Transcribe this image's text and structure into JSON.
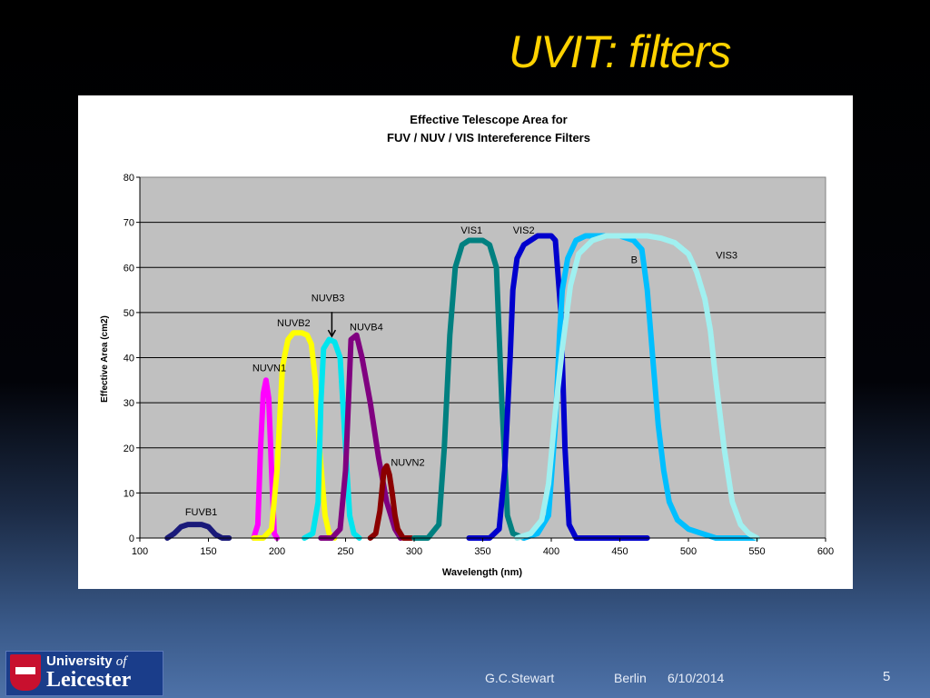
{
  "slide": {
    "title": "UVIT: filters",
    "footer_author": "G.C.Stewart",
    "footer_place": "Berlin",
    "footer_date": "6/10/2014",
    "page_number": "5",
    "logo_line1_prefix": "University",
    "logo_line1_suffix": "of",
    "logo_line2": "Leicester"
  },
  "chart_data": {
    "type": "line",
    "title_line1": "Effective Telescope Area for",
    "title_line2": "FUV / NUV / VIS Intereference Filters",
    "xlabel": "Wavelength (nm)",
    "ylabel": "Effective Area (cm2)",
    "xlim": [
      100,
      600
    ],
    "ylim": [
      0,
      80
    ],
    "xticks": [
      100,
      150,
      200,
      250,
      300,
      350,
      400,
      450,
      500,
      550,
      600
    ],
    "yticks": [
      0,
      10,
      20,
      30,
      40,
      50,
      60,
      70,
      80
    ],
    "grid": true,
    "series": [
      {
        "name": "FUVB1",
        "color": "#1a1a7a",
        "label_at": [
          133,
          5
        ],
        "x": [
          120,
          125,
          130,
          135,
          140,
          145,
          150,
          155,
          160,
          165
        ],
        "y": [
          0,
          1,
          2.5,
          3,
          3,
          3,
          2.5,
          0.8,
          0,
          0
        ]
      },
      {
        "name": "NUVN1",
        "color": "#ff00ff",
        "label_at": [
          182,
          37
        ],
        "x": [
          183,
          186,
          188,
          190,
          192,
          194,
          196,
          198,
          200
        ],
        "y": [
          0,
          3,
          20,
          32,
          35,
          31,
          15,
          1,
          0
        ]
      },
      {
        "name": "NUVB2",
        "color": "#ffff00",
        "label_at": [
          200,
          47
        ],
        "x": [
          183,
          190,
          196,
          200,
          204,
          208,
          212,
          218,
          222,
          225,
          228,
          231,
          235,
          238,
          242
        ],
        "y": [
          0,
          0,
          2,
          15,
          38,
          44,
          45.5,
          45.5,
          45,
          43,
          35,
          20,
          5,
          1,
          0
        ]
      },
      {
        "name": "NUVB3",
        "color": "#00e5ee",
        "label_at": [
          225,
          52.5
        ],
        "x": [
          220,
          226,
          230,
          232,
          234,
          238,
          242,
          246,
          250,
          253,
          256,
          260
        ],
        "y": [
          0,
          1,
          8,
          30,
          42,
          44,
          43.5,
          40,
          20,
          5,
          1,
          0
        ]
      },
      {
        "name": "NUVB4",
        "color": "#800080",
        "label_at": [
          253,
          46
        ],
        "x": [
          232,
          240,
          246,
          250,
          254,
          258,
          262,
          268,
          274,
          280,
          286,
          290
        ],
        "y": [
          0,
          0,
          2,
          15,
          44,
          45,
          40,
          30,
          18,
          8,
          2,
          0
        ]
      },
      {
        "name": "NUVN2",
        "color": "#8b0000",
        "label_at": [
          283,
          16
        ],
        "x": [
          268,
          272,
          275,
          278,
          280,
          282,
          284,
          286,
          288,
          292,
          298
        ],
        "y": [
          0,
          1,
          6,
          15,
          16,
          14,
          10,
          5,
          2,
          0,
          0
        ]
      },
      {
        "name": "VIS1",
        "color": "#008080",
        "label_at": [
          334,
          67.5
        ],
        "x": [
          300,
          310,
          318,
          322,
          326,
          330,
          335,
          340,
          345,
          350,
          355,
          360,
          364,
          368,
          372,
          380
        ],
        "y": [
          0,
          0,
          3,
          20,
          45,
          60,
          65,
          66,
          66,
          66,
          65,
          60,
          30,
          5,
          1,
          0
        ]
      },
      {
        "name": "VIS2",
        "color": "#0000cd",
        "label_at": [
          372,
          67.5
        ],
        "x": [
          340,
          355,
          362,
          366,
          370,
          372,
          375,
          380,
          385,
          390,
          395,
          400,
          403,
          407,
          410,
          413,
          418,
          430,
          470
        ],
        "y": [
          0,
          0,
          2,
          15,
          40,
          55,
          62,
          65,
          66,
          67,
          67,
          67,
          66,
          50,
          20,
          3,
          0,
          0,
          0
        ]
      },
      {
        "name": "B",
        "color": "#00bfff",
        "label_at": [
          458,
          61
        ],
        "x": [
          380,
          390,
          398,
          403,
          406,
          408,
          412,
          418,
          425,
          430,
          440,
          450,
          460,
          466,
          470,
          474,
          478,
          482,
          486,
          492,
          500,
          520,
          550
        ],
        "y": [
          0,
          1,
          5,
          25,
          45,
          55,
          62,
          66,
          67,
          67,
          67,
          67,
          66,
          64,
          55,
          40,
          25,
          15,
          8,
          4,
          2,
          0,
          0
        ]
      },
      {
        "name": "VIS3",
        "color": "#a0f0f0",
        "label_at": [
          520,
          62
        ],
        "x": [
          375,
          385,
          393,
          398,
          403,
          408,
          414,
          420,
          430,
          440,
          450,
          460,
          470,
          480,
          490,
          500,
          506,
          512,
          516,
          520,
          526,
          532,
          538,
          544,
          550
        ],
        "y": [
          0,
          1,
          4,
          12,
          28,
          42,
          56,
          63,
          66,
          67,
          67,
          67,
          67,
          66.5,
          65.5,
          63,
          59,
          53,
          46,
          35,
          20,
          8,
          3,
          1,
          0
        ]
      }
    ],
    "annotations": [
      {
        "text": "NUVB3",
        "arrow_to": [
          240,
          44.5
        ]
      }
    ]
  }
}
